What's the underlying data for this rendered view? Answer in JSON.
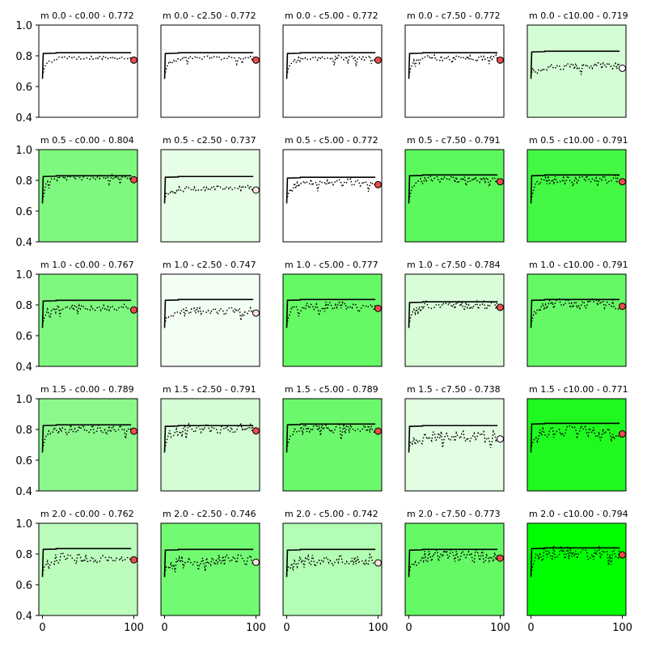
{
  "chart_data": {
    "type": "line",
    "layout": "5x5 small multiples",
    "row_labels": [
      "m 0.0",
      "m 0.5",
      "m 1.0",
      "m 1.5",
      "m 2.0"
    ],
    "col_labels": [
      "c0.00",
      "c2.50",
      "c5.00",
      "c7.50",
      "c10.00"
    ],
    "titles": [
      [
        "m 0.0 - c0.00 - 0.772",
        "m 0.0 - c2.50 - 0.772",
        "m 0.0 - c5.00 - 0.772",
        "m 0.0 - c7.50 - 0.772",
        "m 0.0 - c10.00 - 0.719"
      ],
      [
        "m 0.5 - c0.00 - 0.804",
        "m 0.5 - c2.50 - 0.737",
        "m 0.5 - c5.00 - 0.772",
        "m 0.5 - c7.50 - 0.791",
        "m 0.5 - c10.00 - 0.791"
      ],
      [
        "m 1.0 - c0.00 - 0.767",
        "m 1.0 - c2.50 - 0.747",
        "m 1.0 - c5.00 - 0.777",
        "m 1.0 - c7.50 - 0.784",
        "m 1.0 - c10.00 - 0.791"
      ],
      [
        "m 1.5 - c0.00 - 0.789",
        "m 1.5 - c2.50 - 0.791",
        "m 1.5 - c5.00 - 0.789",
        "m 1.5 - c7.50 - 0.738",
        "m 1.5 - c10.00 - 0.771"
      ],
      [
        "m 2.0 - c0.00 - 0.762",
        "m 2.0 - c2.50 - 0.746",
        "m 2.0 - c5.00 - 0.742",
        "m 2.0 - c7.50 - 0.773",
        "m 2.0 - c10.00 - 0.794"
      ]
    ],
    "final_values": [
      [
        0.772,
        0.772,
        0.772,
        0.772,
        0.719
      ],
      [
        0.804,
        0.737,
        0.772,
        0.791,
        0.791
      ],
      [
        0.767,
        0.747,
        0.777,
        0.784,
        0.791
      ],
      [
        0.789,
        0.791,
        0.789,
        0.738,
        0.771
      ],
      [
        0.762,
        0.746,
        0.742,
        0.773,
        0.794
      ]
    ],
    "background_colors": [
      [
        "#ffffff",
        "#ffffff",
        "#ffffff",
        "#ffffff",
        "#d5fdd5"
      ],
      [
        "#7ff87f",
        "#e6fde6",
        "#ffffff",
        "#5cf95c",
        "#44f944"
      ],
      [
        "#7ff87f",
        "#f4fff4",
        "#66f966",
        "#d9fdd9",
        "#66f966"
      ],
      [
        "#8cf88c",
        "#d5fdd5",
        "#6cf86c",
        "#e2fde2",
        "#1ff91f"
      ],
      [
        "#bcfdbc",
        "#72fa72",
        "#b4fdb4",
        "#66f966",
        "#00ff00"
      ]
    ],
    "marker_colors": [
      [
        "#ef4b4b",
        "#ef4b4b",
        "#ef4b4b",
        "#ef4b4b",
        "#ffffff"
      ],
      [
        "#ef4b4b",
        "#ffe0e0",
        "#ef4b4b",
        "#ef4b4b",
        "#ef4b4b"
      ],
      [
        "#ef4b4b",
        "#ffe0e0",
        "#ef4b4b",
        "#ef4b4b",
        "#ef4b4b"
      ],
      [
        "#ef4b4b",
        "#ef4b4b",
        "#ef4b4b",
        "#ffffff",
        "#ef4b4b"
      ],
      [
        "#ef4b4b",
        "#ffe0e0",
        "#ffe0e0",
        "#ef4b4b",
        "#ef4b4b"
      ]
    ],
    "best_plateau": [
      [
        0.82,
        0.82,
        0.82,
        0.82,
        0.83
      ],
      [
        0.83,
        0.825,
        0.82,
        0.835,
        0.835
      ],
      [
        0.83,
        0.835,
        0.835,
        0.82,
        0.835
      ],
      [
        0.83,
        0.825,
        0.835,
        0.825,
        0.84
      ],
      [
        0.835,
        0.83,
        0.83,
        0.83,
        0.84
      ]
    ],
    "xlim": [
      -4,
      104
    ],
    "ylim": [
      0.4,
      1.0
    ],
    "x_ticks": [
      0,
      100
    ],
    "y_ticks": [
      "1.0",
      "0.8",
      "0.6",
      "0.4"
    ],
    "grid": false
  }
}
